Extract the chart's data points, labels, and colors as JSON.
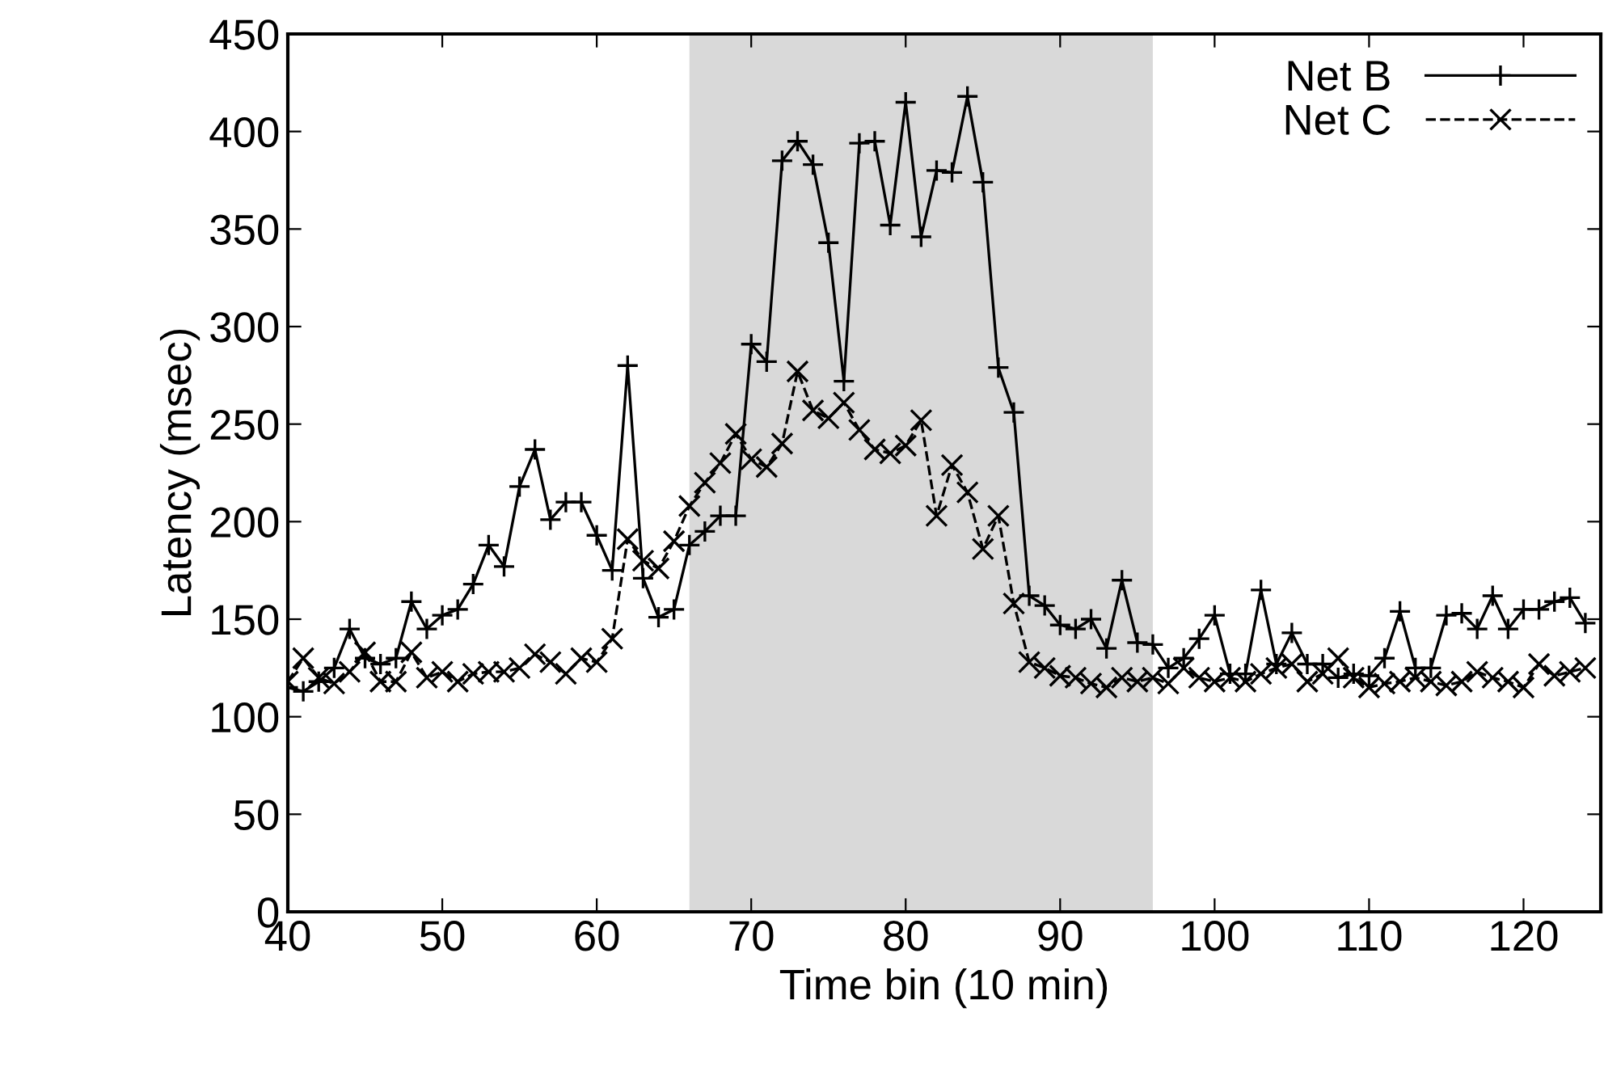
{
  "chart_data": {
    "type": "line",
    "xlabel": "Time bin (10 min)",
    "ylabel": "Latency (msec)",
    "x": [
      40,
      41,
      42,
      43,
      44,
      45,
      46,
      47,
      48,
      49,
      50,
      51,
      52,
      53,
      54,
      55,
      56,
      57,
      58,
      59,
      60,
      61,
      62,
      63,
      64,
      65,
      66,
      67,
      68,
      69,
      70,
      71,
      72,
      73,
      74,
      75,
      76,
      77,
      78,
      79,
      80,
      81,
      82,
      83,
      84,
      85,
      86,
      87,
      88,
      89,
      90,
      91,
      92,
      93,
      94,
      95,
      96,
      97,
      98,
      99,
      100,
      101,
      102,
      103,
      104,
      105,
      106,
      107,
      108,
      109,
      110,
      111,
      112,
      113,
      114,
      115,
      116,
      117,
      118,
      119,
      120,
      121,
      122,
      123,
      124
    ],
    "series": [
      {
        "name": "Net B",
        "color": "#000000",
        "marker": "plus",
        "line_style": "solid",
        "values": [
          115,
          113,
          118,
          125,
          145,
          130,
          127,
          130,
          159,
          145,
          152,
          155,
          168,
          188,
          177,
          218,
          237,
          201,
          210,
          210,
          193,
          175,
          280,
          171,
          151,
          155,
          188,
          195,
          203,
          203,
          291,
          282,
          385,
          395,
          383,
          343,
          272,
          394,
          395,
          352,
          415,
          346,
          380,
          379,
          418,
          374,
          279,
          256,
          162,
          157,
          147,
          145,
          150,
          135,
          170,
          138,
          137,
          125,
          130,
          140,
          152,
          122,
          122,
          165,
          127,
          143,
          127,
          127,
          120,
          122,
          121,
          130,
          154,
          125,
          125,
          152,
          153,
          145,
          162,
          145,
          155,
          155,
          159,
          161,
          148
        ]
      },
      {
        "name": "Net C",
        "color": "#000000",
        "marker": "cross",
        "line_style": "dashed",
        "values": [
          118,
          130,
          120,
          117,
          123,
          133,
          118,
          118,
          133,
          120,
          123,
          118,
          122,
          123,
          123,
          125,
          132,
          128,
          122,
          130,
          128,
          140,
          191,
          180,
          176,
          190,
          208,
          220,
          230,
          245,
          232,
          228,
          240,
          277,
          257,
          253,
          261,
          247,
          237,
          235,
          239,
          252,
          203,
          229,
          215,
          186,
          203,
          158,
          128,
          125,
          121,
          120,
          117,
          115,
          120,
          118,
          120,
          117,
          125,
          120,
          118,
          120,
          118,
          122,
          125,
          127,
          118,
          122,
          130,
          120,
          115,
          117,
          118,
          120,
          118,
          116,
          118,
          123,
          120,
          118,
          115,
          127,
          121,
          123,
          125
        ]
      }
    ],
    "bands": [
      {
        "axis": "x",
        "from": 66,
        "to": 96,
        "color": "#d9d9d9"
      }
    ],
    "xlim": [
      40,
      125
    ],
    "xticks": [
      40,
      50,
      60,
      70,
      80,
      90,
      100,
      110,
      120
    ],
    "ylim": [
      0,
      450
    ],
    "yticks": [
      0,
      50,
      100,
      150,
      200,
      250,
      300,
      350,
      400,
      450
    ],
    "grid": false,
    "legend": "top right"
  }
}
